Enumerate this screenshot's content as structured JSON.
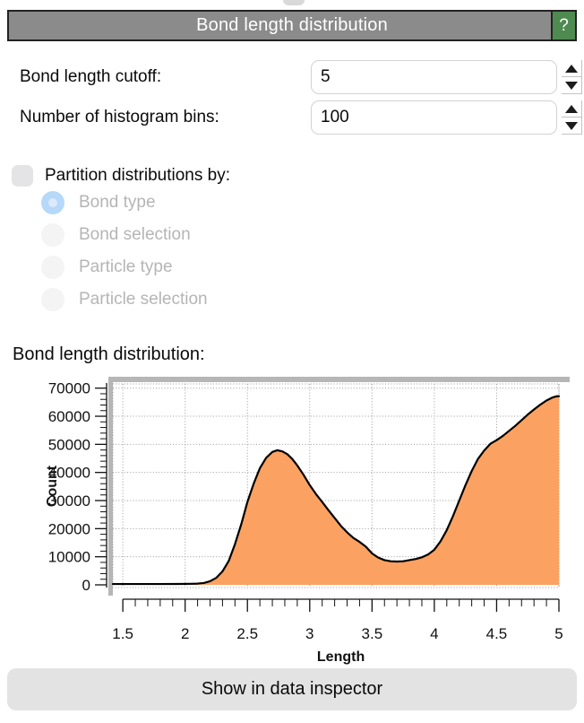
{
  "header": {
    "title": "Bond length distribution",
    "help_label": "?"
  },
  "fields": [
    {
      "label": "Bond length cutoff:",
      "value": "5"
    },
    {
      "label": "Number of histogram bins:",
      "value": "100"
    }
  ],
  "partition": {
    "checkbox_label": "Partition distributions by:",
    "checked": false,
    "options": [
      {
        "label": "Bond type",
        "selected": true
      },
      {
        "label": "Bond selection",
        "selected": false
      },
      {
        "label": "Particle type",
        "selected": false
      },
      {
        "label": "Particle selection",
        "selected": false
      }
    ]
  },
  "plot_heading": "Bond length distribution:",
  "footer": {
    "button_label": "Show in data inspector"
  },
  "colors": {
    "accent_fill": "#FBA262",
    "header_bg": "#8B8B8B",
    "help_green": "#4F8A51",
    "radio_selected": "#B6D8F9",
    "disabled_text": "#B5B5B5"
  },
  "chart_data": {
    "type": "area",
    "title": "",
    "xlabel": "Length",
    "ylabel": "Count",
    "xlim": [
      1.42,
      5.0
    ],
    "ylim": [
      0,
      71500
    ],
    "x_major_ticks": [
      1.5,
      2,
      2.5,
      3,
      3.5,
      4,
      4.5,
      5
    ],
    "x_minor_step": 0.1,
    "y_major_ticks": [
      0,
      10000,
      20000,
      30000,
      40000,
      50000,
      60000,
      70000
    ],
    "y_minor_step": 2000,
    "grid": "dotted",
    "legend": "none",
    "series": [
      {
        "fill": "#FBA262",
        "line_color": "#000000",
        "x": [
          1.42,
          1.6,
          1.8,
          1.95,
          2.05,
          2.1,
          2.15,
          2.2,
          2.25,
          2.3,
          2.35,
          2.4,
          2.45,
          2.5,
          2.55,
          2.6,
          2.65,
          2.7,
          2.74,
          2.78,
          2.82,
          2.86,
          2.9,
          2.95,
          3.0,
          3.05,
          3.1,
          3.15,
          3.2,
          3.25,
          3.3,
          3.35,
          3.4,
          3.45,
          3.5,
          3.55,
          3.6,
          3.65,
          3.7,
          3.75,
          3.8,
          3.85,
          3.9,
          3.95,
          4.0,
          4.05,
          4.1,
          4.15,
          4.2,
          4.25,
          4.3,
          4.35,
          4.4,
          4.45,
          4.5,
          4.55,
          4.6,
          4.65,
          4.7,
          4.75,
          4.8,
          4.85,
          4.9,
          4.95,
          4.98,
          5.0
        ],
        "y": [
          300,
          300,
          300,
          320,
          380,
          450,
          650,
          1300,
          2500,
          4800,
          8500,
          14500,
          21500,
          29500,
          36000,
          41500,
          45200,
          47300,
          47900,
          47500,
          46500,
          44800,
          42500,
          39200,
          35500,
          32300,
          29500,
          26600,
          23800,
          21000,
          18700,
          16700,
          15300,
          13600,
          11200,
          9700,
          8800,
          8400,
          8300,
          8400,
          8800,
          9200,
          9800,
          10800,
          12500,
          15500,
          19500,
          24500,
          30000,
          35500,
          40500,
          44800,
          47800,
          50200,
          51500,
          53000,
          54800,
          56600,
          58600,
          60600,
          62400,
          64100,
          65600,
          66700,
          67100,
          67100
        ]
      }
    ]
  }
}
